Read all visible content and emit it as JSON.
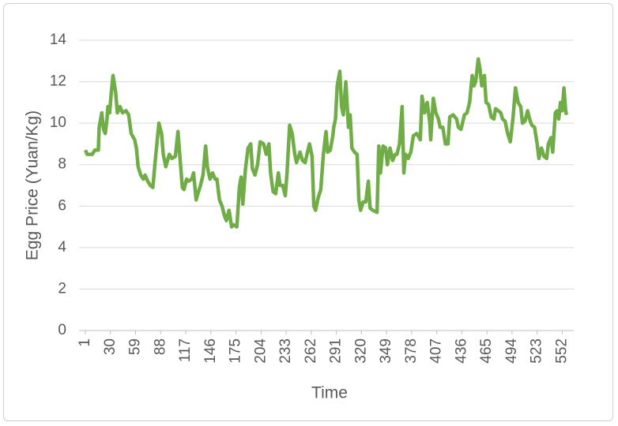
{
  "chart_data": {
    "type": "line",
    "x_label": "Time",
    "y_label": "Egg Price (Yuan/Kg)",
    "color": "#70ad47",
    "grid": true,
    "xlim": [
      1,
      558
    ],
    "xticks": [
      1,
      30,
      59,
      88,
      117,
      146,
      175,
      204,
      233,
      262,
      291,
      320,
      349,
      378,
      407,
      436,
      465,
      494,
      523,
      552
    ],
    "ylim": [
      0,
      14
    ],
    "yticks": [
      0,
      2,
      4,
      6,
      8,
      10,
      12,
      14
    ],
    "x": [
      1,
      3,
      9,
      12,
      16,
      17,
      20,
      22,
      24,
      26,
      27,
      29,
      31,
      33,
      36,
      38,
      41,
      44,
      48,
      51,
      54,
      58,
      60,
      62,
      65,
      68,
      70,
      73,
      76,
      79,
      82,
      86,
      89,
      91,
      94,
      98,
      101,
      105,
      108,
      110,
      113,
      115,
      118,
      120,
      124,
      126,
      129,
      131,
      134,
      137,
      140,
      142,
      145,
      148,
      151,
      153,
      156,
      159,
      162,
      164,
      167,
      170,
      172,
      176,
      179,
      181,
      183,
      186,
      189,
      192,
      194,
      197,
      200,
      203,
      207,
      210,
      213,
      215,
      218,
      221,
      224,
      226,
      229,
      232,
      234,
      237,
      240,
      243,
      245,
      249,
      252,
      255,
      257,
      260,
      263,
      265,
      267,
      270,
      273,
      276,
      279,
      281,
      284,
      287,
      288,
      290,
      292,
      295,
      297,
      299,
      302,
      305,
      307,
      309,
      312,
      315,
      317,
      319,
      322,
      325,
      328,
      330,
      333,
      338,
      340,
      342,
      345,
      348,
      350,
      353,
      356,
      359,
      361,
      364,
      367,
      369,
      371,
      374,
      377,
      380,
      384,
      388,
      390,
      393,
      396,
      399,
      400,
      403,
      406,
      409,
      411,
      414,
      417,
      420,
      422,
      426,
      430,
      432,
      435,
      439,
      442,
      445,
      448,
      450,
      452,
      455,
      457,
      459,
      462,
      464,
      467,
      470,
      473,
      475,
      478,
      481,
      483,
      486,
      489,
      492,
      495,
      498,
      501,
      504,
      506,
      509,
      512,
      515,
      517,
      520,
      523,
      525,
      528,
      531,
      534,
      536,
      539,
      541,
      544,
      546,
      548,
      550,
      552,
      554,
      556,
      557
    ],
    "values": [
      8.7,
      8.5,
      8.5,
      8.7,
      8.7,
      9.8,
      10.5,
      9.7,
      9.5,
      10.2,
      10.8,
      10.5,
      11.5,
      12.3,
      11.5,
      10.5,
      10.8,
      10.5,
      10.6,
      10.4,
      9.5,
      9.2,
      8.8,
      7.9,
      7.5,
      7.3,
      7.5,
      7.2,
      7.0,
      6.9,
      8.3,
      10.0,
      9.5,
      8.5,
      7.9,
      8.5,
      8.3,
      8.4,
      9.6,
      8.5,
      6.9,
      6.8,
      7.3,
      7.2,
      7.3,
      7.6,
      6.3,
      6.6,
      7.0,
      7.5,
      8.9,
      7.9,
      7.3,
      7.6,
      7.3,
      7.3,
      6.3,
      6.0,
      5.5,
      5.3,
      5.8,
      5.0,
      5.1,
      5.0,
      6.9,
      7.4,
      6.1,
      7.8,
      8.8,
      9.0,
      7.8,
      7.5,
      8.0,
      9.1,
      9.0,
      8.5,
      9.0,
      7.6,
      6.7,
      6.6,
      7.6,
      7.0,
      7.0,
      6.5,
      7.6,
      9.9,
      9.5,
      8.5,
      8.1,
      8.6,
      8.2,
      8.1,
      8.5,
      9.0,
      8.4,
      6.0,
      5.8,
      6.4,
      6.8,
      8.5,
      9.6,
      8.6,
      8.7,
      9.4,
      9.8,
      10.2,
      11.8,
      12.5,
      10.8,
      10.4,
      12.0,
      9.8,
      10.4,
      8.8,
      8.6,
      8.5,
      6.3,
      5.8,
      6.2,
      6.2,
      7.2,
      5.9,
      5.8,
      5.7,
      8.9,
      7.6,
      8.9,
      8.8,
      8.0,
      8.8,
      8.2,
      8.5,
      8.5,
      9.0,
      10.8,
      7.6,
      8.5,
      8.3,
      8.6,
      9.4,
      9.5,
      9.2,
      11.3,
      10.5,
      11.0,
      10.0,
      9.2,
      11.2,
      10.5,
      10.2,
      9.8,
      9.8,
      9.0,
      9.0,
      10.3,
      10.4,
      10.2,
      9.8,
      9.7,
      10.4,
      10.5,
      11.0,
      12.3,
      11.8,
      12.0,
      13.1,
      12.6,
      11.8,
      12.3,
      11.0,
      10.9,
      10.3,
      10.2,
      10.7,
      10.6,
      10.5,
      10.2,
      10.1,
      9.5,
      9.1,
      10.2,
      11.7,
      11.0,
      10.8,
      10.0,
      10.1,
      10.6,
      10.1,
      9.9,
      9.8,
      9.0,
      8.3,
      8.8,
      8.4,
      8.3,
      9.0,
      9.3,
      8.6,
      10.5,
      10.6,
      10.2,
      11.0,
      10.6,
      11.7,
      10.6,
      10.4
    ]
  }
}
